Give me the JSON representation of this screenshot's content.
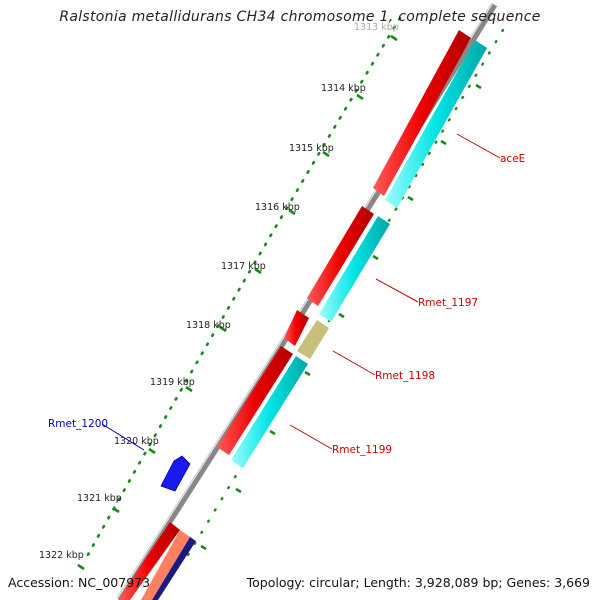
{
  "title": "Ralstonia metallidurans CH34 chromosome 1, complete sequence",
  "accession_text": "Accession: NC_007973",
  "summary_text": "Topology: circular; Length: 3,928,089 bp; Genes: 3,669",
  "colors": {
    "backbone": "#888888",
    "tick": "#1a8a1a",
    "forward_gene": "#ee0000",
    "reverse_gene": "#00e5e5",
    "other_gene": "#c8bf7a",
    "label_blue": "#0000cc",
    "label_red": "#cc0000"
  },
  "scale": {
    "labels": [
      "1313 kbp",
      "1314 kbp",
      "1315 kbp",
      "1316 kbp",
      "1317 kbp",
      "1318 kbp",
      "1319 kbp",
      "1320 kbp",
      "1321 kbp",
      "1322 kbp"
    ]
  },
  "gene_labels": [
    {
      "text": "aceE",
      "color": "red"
    },
    {
      "text": "Rmet_1197",
      "color": "red"
    },
    {
      "text": "Rmet_1198",
      "color": "red"
    },
    {
      "text": "Rmet_1199",
      "color": "red"
    },
    {
      "text": "Rmet_1200",
      "color": "blue"
    }
  ]
}
